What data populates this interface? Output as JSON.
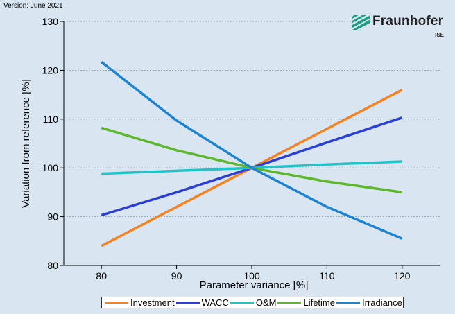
{
  "version_label": "Version: June 2021",
  "logo": {
    "name": "Fraunhofer",
    "sub": "ISE",
    "color": "#179c7d"
  },
  "chart_data": {
    "type": "line",
    "x": [
      80,
      90,
      100,
      110,
      120
    ],
    "xlabel": "Parameter variance [%]",
    "ylabel": "Variation from reference [%]",
    "xlim": [
      75,
      125
    ],
    "ylim": [
      80,
      130
    ],
    "xticks": [
      80,
      90,
      100,
      110,
      120
    ],
    "yticks": [
      80,
      90,
      100,
      110,
      120,
      130
    ],
    "grid": "horizontal-dotted",
    "legend_position": "bottom",
    "series": [
      {
        "name": "Investment",
        "color": "#f5821f",
        "values": [
          84,
          92,
          100,
          108,
          116
        ]
      },
      {
        "name": "WACC",
        "color": "#2b3fd8",
        "values": [
          90.3,
          95,
          100,
          105.2,
          110.3
        ]
      },
      {
        "name": "O&M",
        "color": "#21c2c8",
        "values": [
          98.8,
          99.4,
          100,
          100.7,
          101.3
        ]
      },
      {
        "name": "Lifetime",
        "color": "#5cb82a",
        "values": [
          108.2,
          103.6,
          100,
          97.2,
          95
        ]
      },
      {
        "name": "Irradiance",
        "color": "#1b83d0",
        "values": [
          121.7,
          109.7,
          100,
          92,
          85.5
        ]
      }
    ]
  }
}
